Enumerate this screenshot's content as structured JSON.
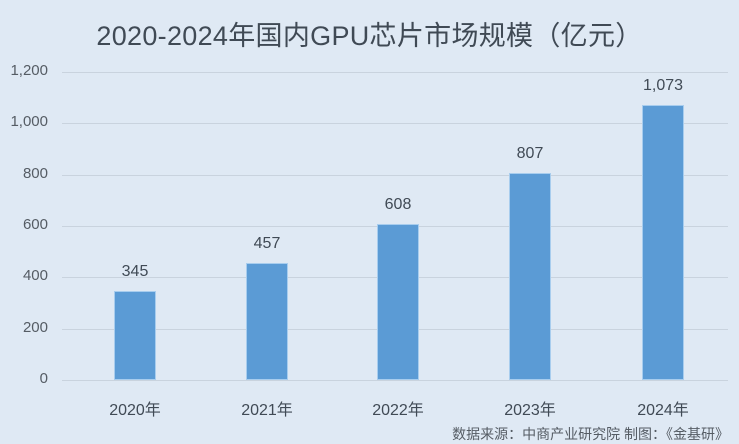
{
  "title": "2020-2024年国内GPU芯片市场规模（亿元）",
  "source": "数据来源：中商产业研究院  制图：《金基研》",
  "colors": {
    "bar": "#5b9bd5",
    "background": "#dfe9f4",
    "grid": "#c9d3de"
  },
  "chart_data": {
    "type": "bar",
    "title": "2020-2024年国内GPU芯片市场规模（亿元）",
    "categories": [
      "2020年",
      "2021年",
      "2022年",
      "2023年",
      "2024年"
    ],
    "values": [
      345,
      457,
      608,
      807,
      1073
    ],
    "value_labels": [
      "345",
      "457",
      "608",
      "807",
      "1,073"
    ],
    "xlabel": "",
    "ylabel": "",
    "ylim": [
      0,
      1200
    ],
    "yticks": [
      "0",
      "200",
      "400",
      "600",
      "800",
      "1,000",
      "1,200"
    ],
    "grid": true,
    "legend": "none"
  }
}
